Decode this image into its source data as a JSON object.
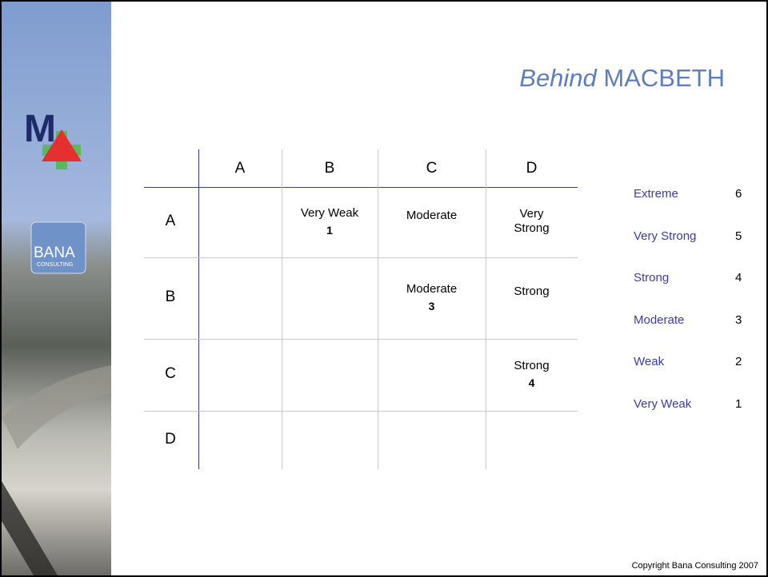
{
  "title": {
    "emphasis": "Behind",
    "main": "MACBETH"
  },
  "logo": {
    "name": "BANA",
    "tagline": "CONSULTING"
  },
  "table": {
    "columns": [
      "A",
      "B",
      "C",
      "D"
    ],
    "rows": [
      {
        "label": "A",
        "cells": [
          null,
          {
            "text": "Very Weak",
            "number": 1
          },
          {
            "text": "Moderate"
          },
          {
            "text": "Very Strong"
          }
        ]
      },
      {
        "label": "B",
        "cells": [
          null,
          null,
          {
            "text": "Moderate",
            "number": 3
          },
          {
            "text": "Strong"
          }
        ]
      },
      {
        "label": "C",
        "cells": [
          null,
          null,
          null,
          {
            "text": "Strong",
            "number": 4
          }
        ]
      },
      {
        "label": "D",
        "cells": [
          null,
          null,
          null,
          null
        ]
      }
    ]
  },
  "scale": [
    {
      "name": "Extreme",
      "number": 6
    },
    {
      "name": "Very Strong",
      "number": 5
    },
    {
      "name": "Strong",
      "number": 4
    },
    {
      "name": "Moderate",
      "number": 3
    },
    {
      "name": "Weak",
      "number": 2
    },
    {
      "name": "Very Weak",
      "number": 1
    }
  ],
  "footer": "Copyright Bana Consulting 2007"
}
